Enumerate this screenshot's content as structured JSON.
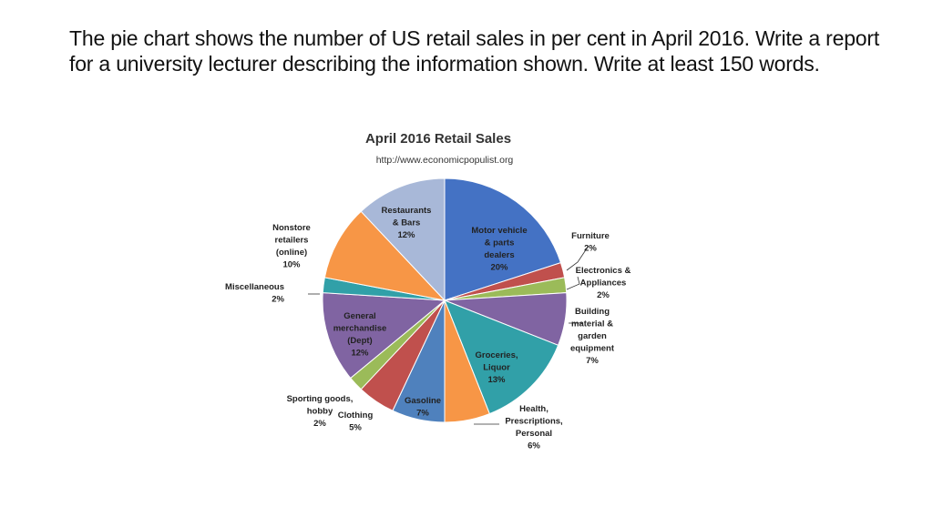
{
  "slide": {
    "heading": "The pie chart shows the number of US retail sales in per cent in April 2016. Write a report for a university lecturer describing the information shown. Write at least 150 words."
  },
  "chart_data": {
    "type": "pie",
    "title": "April 2016 Retail Sales",
    "subtitle": "http://www.economicpopulist.org",
    "unit": "%",
    "legend": "none",
    "slices": [
      {
        "label": "Motor vehicle & parts dealers",
        "value": 20,
        "color": "#4472c4"
      },
      {
        "label": "Furniture",
        "value": 2,
        "color": "#c0504d"
      },
      {
        "label": "Electronics & Appliances",
        "value": 2,
        "color": "#9bbb59"
      },
      {
        "label": "Building material & garden equipment",
        "value": 7,
        "color": "#8064a2"
      },
      {
        "label": "Groceries, Liquor",
        "value": 13,
        "color": "#31a0a8"
      },
      {
        "label": "Health, Prescriptions, Personal",
        "value": 6,
        "color": "#f79646"
      },
      {
        "label": "Gasoline",
        "value": 7,
        "color": "#4f81bd"
      },
      {
        "label": "Clothing",
        "value": 5,
        "color": "#c0504d"
      },
      {
        "label": "Sporting goods, hobby",
        "value": 2,
        "color": "#9bbb59"
      },
      {
        "label": "General merchandise (Dept)",
        "value": 12,
        "color": "#8064a2"
      },
      {
        "label": "Miscellaneous",
        "value": 2,
        "color": "#31a0a8"
      },
      {
        "label": "Nonstore retailers (online)",
        "value": 10,
        "color": "#f79646"
      },
      {
        "label": "Restaurants & Bars",
        "value": 12,
        "color": "#a8b8d8"
      }
    ]
  }
}
